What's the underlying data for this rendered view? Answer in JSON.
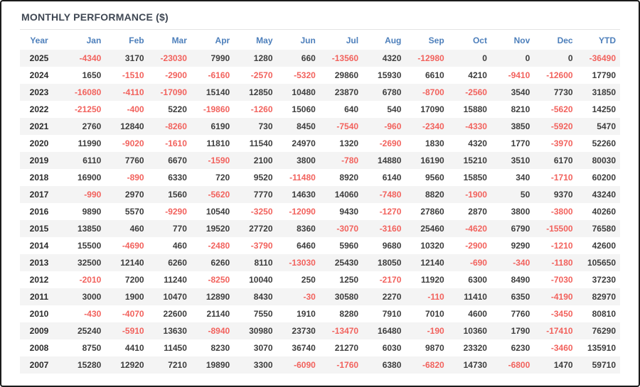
{
  "title": "MONTHLY PERFORMANCE ($)",
  "colors": {
    "title_text": "#3f4753",
    "header_text": "#4d7fbb",
    "positive": "#3d3d3d",
    "negative": "#f2625d",
    "year_text": "#2b2b2b",
    "stripe": "#f4f4f4"
  },
  "chart_data": {
    "type": "table",
    "title": "MONTHLY PERFORMANCE ($)",
    "columns": [
      "Year",
      "Jan",
      "Feb",
      "Mar",
      "Apr",
      "May",
      "Jun",
      "Jul",
      "Aug",
      "Sep",
      "Oct",
      "Nov",
      "Dec",
      "YTD"
    ],
    "rows": [
      {
        "year": "2025",
        "values": [
          -4340,
          3170,
          -23030,
          7990,
          1280,
          660,
          -13560,
          4320,
          -12980,
          0,
          0,
          0,
          -36490
        ]
      },
      {
        "year": "2024",
        "values": [
          1650,
          -1510,
          -2900,
          -6160,
          -2570,
          -5320,
          29860,
          15930,
          6610,
          4210,
          -9410,
          -12600,
          17790
        ]
      },
      {
        "year": "2023",
        "values": [
          -16080,
          -4110,
          -17090,
          15140,
          12850,
          10480,
          23870,
          6780,
          -8700,
          -2560,
          3540,
          7730,
          31850
        ]
      },
      {
        "year": "2022",
        "values": [
          -21250,
          -400,
          5220,
          -19860,
          -1260,
          15060,
          640,
          540,
          17090,
          15880,
          8210,
          -5620,
          14250
        ]
      },
      {
        "year": "2021",
        "values": [
          2760,
          12840,
          -8260,
          6190,
          730,
          8450,
          -7540,
          -960,
          -2340,
          -4330,
          3850,
          -5920,
          5470
        ]
      },
      {
        "year": "2020",
        "values": [
          11990,
          -9020,
          -1610,
          11810,
          11540,
          24970,
          1320,
          -2690,
          1830,
          4320,
          1770,
          -3970,
          52260
        ]
      },
      {
        "year": "2019",
        "values": [
          6110,
          7760,
          6670,
          -1590,
          2100,
          3800,
          -780,
          14880,
          16190,
          15210,
          3510,
          6170,
          80030
        ]
      },
      {
        "year": "2018",
        "values": [
          16900,
          -890,
          6330,
          720,
          9520,
          -11480,
          8920,
          6140,
          9560,
          15850,
          340,
          -1710,
          60200
        ]
      },
      {
        "year": "2017",
        "values": [
          -990,
          2970,
          1560,
          -5620,
          7770,
          14630,
          14060,
          -7480,
          8820,
          -1900,
          50,
          9370,
          43240
        ]
      },
      {
        "year": "2016",
        "values": [
          9890,
          5570,
          -9290,
          10540,
          -3250,
          -12090,
          9430,
          -1270,
          27860,
          2870,
          3800,
          -3800,
          40260
        ]
      },
      {
        "year": "2015",
        "values": [
          13850,
          460,
          770,
          19520,
          27720,
          8360,
          -3070,
          -3160,
          25460,
          -4620,
          6790,
          -15500,
          76580
        ]
      },
      {
        "year": "2014",
        "values": [
          15500,
          -4690,
          460,
          -2480,
          -3790,
          6460,
          5960,
          9680,
          10320,
          -2900,
          9290,
          -1210,
          42600
        ]
      },
      {
        "year": "2013",
        "values": [
          32500,
          12140,
          6260,
          6260,
          8110,
          -13030,
          25430,
          18050,
          12140,
          -690,
          -340,
          -1180,
          105650
        ]
      },
      {
        "year": "2012",
        "values": [
          -2010,
          7200,
          11240,
          -8250,
          10040,
          250,
          1250,
          -2170,
          11920,
          6300,
          8490,
          -7030,
          37230
        ]
      },
      {
        "year": "2011",
        "values": [
          3000,
          1900,
          10470,
          12890,
          8430,
          -30,
          30580,
          2270,
          -110,
          11410,
          6350,
          -4190,
          82970
        ]
      },
      {
        "year": "2010",
        "values": [
          -430,
          -4070,
          22600,
          21140,
          7550,
          1910,
          8280,
          7910,
          7010,
          4600,
          7760,
          -3450,
          80810
        ]
      },
      {
        "year": "2009",
        "values": [
          25240,
          -5910,
          13630,
          -8940,
          30980,
          23730,
          -13470,
          16480,
          -190,
          10360,
          1790,
          -17410,
          76290
        ]
      },
      {
        "year": "2008",
        "values": [
          8750,
          4410,
          11450,
          8230,
          3070,
          36740,
          21270,
          6030,
          9870,
          23320,
          6230,
          -3460,
          135910
        ]
      },
      {
        "year": "2007",
        "values": [
          15280,
          12920,
          7210,
          19890,
          3300,
          -6090,
          -1760,
          6380,
          -6820,
          14730,
          -6800,
          1470,
          59710
        ]
      }
    ]
  }
}
